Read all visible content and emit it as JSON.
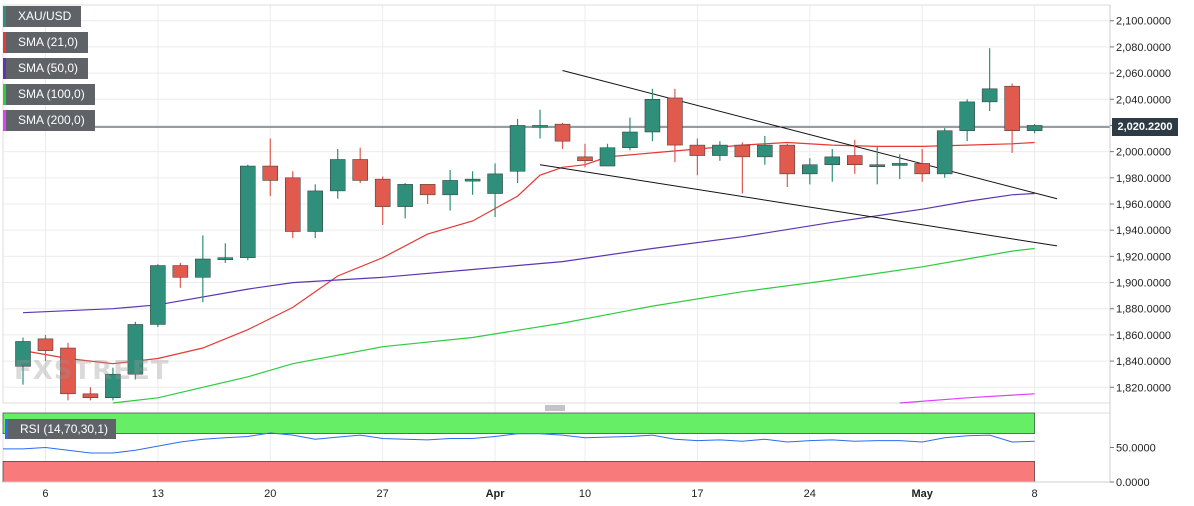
{
  "legends": [
    {
      "label": "XAU/USD",
      "color": "#2f8f7a"
    },
    {
      "label": "SMA (21,0)",
      "color": "#e53935"
    },
    {
      "label": "SMA (50,0)",
      "color": "#5e35b1"
    },
    {
      "label": "SMA (100,0)",
      "color": "#2ecc40"
    },
    {
      "label": "SMA (200,0)",
      "color": "#e040fb"
    }
  ],
  "rsi_legend": "RSI (14,70,30,1)",
  "watermark": "FXSTREET",
  "current_price_label": "2,020.2200",
  "colors": {
    "up": "#2f8f7a",
    "down": "#e05a4e",
    "rsi": "#2a6df4",
    "rsi_over": "#66ee66",
    "rsi_under": "#f87a7a"
  },
  "chart_data": {
    "type": "candlestick",
    "xlabel": "",
    "ylabel": "",
    "ylim": [
      1808,
      2112
    ],
    "y_ticks": [
      "1,820.0000",
      "1,840.0000",
      "1,860.0000",
      "1,880.0000",
      "1,900.0000",
      "1,920.0000",
      "1,940.0000",
      "1,960.0000",
      "1,980.0000",
      "2,000.0000",
      "2,020.0000",
      "2,040.0000",
      "2,060.0000",
      "2,080.0000",
      "2,100.0000"
    ],
    "y_tick_values": [
      1820,
      1840,
      1860,
      1880,
      1900,
      1920,
      1940,
      1960,
      1980,
      2000,
      2020,
      2040,
      2060,
      2080,
      2100
    ],
    "x_ticks": [
      {
        "label": "6",
        "i": 1
      },
      {
        "label": "13",
        "i": 6
      },
      {
        "label": "20",
        "i": 11
      },
      {
        "label": "27",
        "i": 16
      },
      {
        "label": "Apr",
        "i": 21
      },
      {
        "label": "10",
        "i": 25
      },
      {
        "label": "17",
        "i": 30
      },
      {
        "label": "24",
        "i": 35
      },
      {
        "label": "May",
        "i": 40
      },
      {
        "label": "8",
        "i": 45
      }
    ],
    "candles": [
      {
        "o": 1836,
        "h": 1858,
        "l": 1822,
        "c": 1855
      },
      {
        "o": 1857,
        "h": 1860,
        "l": 1840,
        "c": 1848
      },
      {
        "o": 1850,
        "h": 1854,
        "l": 1810,
        "c": 1815
      },
      {
        "o": 1815,
        "h": 1820,
        "l": 1810,
        "c": 1812
      },
      {
        "o": 1812,
        "h": 1835,
        "l": 1810,
        "c": 1830
      },
      {
        "o": 1830,
        "h": 1870,
        "l": 1826,
        "c": 1868
      },
      {
        "o": 1868,
        "h": 1914,
        "l": 1866,
        "c": 1913
      },
      {
        "o": 1913,
        "h": 1915,
        "l": 1896,
        "c": 1904
      },
      {
        "o": 1904,
        "h": 1936,
        "l": 1885,
        "c": 1918
      },
      {
        "o": 1918,
        "h": 1930,
        "l": 1915,
        "c": 1919
      },
      {
        "o": 1919,
        "h": 1990,
        "l": 1917,
        "c": 1989
      },
      {
        "o": 1989,
        "h": 2010,
        "l": 1966,
        "c": 1978
      },
      {
        "o": 1980,
        "h": 1985,
        "l": 1934,
        "c": 1939
      },
      {
        "o": 1939,
        "h": 1975,
        "l": 1934,
        "c": 1970
      },
      {
        "o": 1970,
        "h": 2002,
        "l": 1964,
        "c": 1994
      },
      {
        "o": 1994,
        "h": 2003,
        "l": 1976,
        "c": 1978
      },
      {
        "o": 1979,
        "h": 1981,
        "l": 1944,
        "c": 1958
      },
      {
        "o": 1958,
        "h": 1976,
        "l": 1949,
        "c": 1975
      },
      {
        "o": 1975,
        "h": 1974,
        "l": 1960,
        "c": 1967
      },
      {
        "o": 1967,
        "h": 1986,
        "l": 1955,
        "c": 1978
      },
      {
        "o": 1978,
        "h": 1985,
        "l": 1967,
        "c": 1979
      },
      {
        "o": 1968,
        "h": 1991,
        "l": 1950,
        "c": 1983
      },
      {
        "o": 1985,
        "h": 2025,
        "l": 1976,
        "c": 2020
      },
      {
        "o": 2020,
        "h": 2032,
        "l": 2010,
        "c": 2020
      },
      {
        "o": 2021,
        "h": 2022,
        "l": 2002,
        "c": 2008
      },
      {
        "o": 1996,
        "h": 2006,
        "l": 1988,
        "c": 1993
      },
      {
        "o": 1989,
        "h": 2006,
        "l": 1990,
        "c": 2003
      },
      {
        "o": 2003,
        "h": 2026,
        "l": 2001,
        "c": 2015
      },
      {
        "o": 2015,
        "h": 2048,
        "l": 2008,
        "c": 2040
      },
      {
        "o": 2041,
        "h": 2048,
        "l": 1992,
        "c": 2005
      },
      {
        "o": 2005,
        "h": 2010,
        "l": 1982,
        "c": 1997
      },
      {
        "o": 1997,
        "h": 2008,
        "l": 1993,
        "c": 2005
      },
      {
        "o": 2005,
        "h": 2007,
        "l": 1968,
        "c": 1996
      },
      {
        "o": 1996,
        "h": 2012,
        "l": 1990,
        "c": 2005
      },
      {
        "o": 2005,
        "h": 2006,
        "l": 1973,
        "c": 1983
      },
      {
        "o": 1983,
        "h": 1995,
        "l": 1975,
        "c": 1990
      },
      {
        "o": 1990,
        "h": 2002,
        "l": 1977,
        "c": 1996
      },
      {
        "o": 1997,
        "h": 2009,
        "l": 1983,
        "c": 1990
      },
      {
        "o": 1990,
        "h": 2004,
        "l": 1975,
        "c": 1990
      },
      {
        "o": 1990,
        "h": 1998,
        "l": 1979,
        "c": 1991
      },
      {
        "o": 1991,
        "h": 2002,
        "l": 1977,
        "c": 1983
      },
      {
        "o": 1983,
        "h": 2018,
        "l": 1980,
        "c": 2016
      },
      {
        "o": 2016,
        "h": 2040,
        "l": 2008,
        "c": 2038
      },
      {
        "o": 2038,
        "h": 2079,
        "l": 2031,
        "c": 2048
      },
      {
        "o": 2050,
        "h": 2052,
        "l": 1999,
        "c": 2016
      },
      {
        "o": 2016,
        "h": 2021,
        "l": 2014,
        "c": 2020
      }
    ],
    "series": [
      {
        "name": "SMA (21,0)",
        "values": [
          [
            0,
            1848
          ],
          [
            2,
            1842
          ],
          [
            4,
            1838
          ],
          [
            6,
            1842
          ],
          [
            8,
            1850
          ],
          [
            10,
            1864
          ],
          [
            12,
            1881
          ],
          [
            14,
            1905
          ],
          [
            16,
            1919
          ],
          [
            18,
            1937
          ],
          [
            20,
            1947
          ],
          [
            22,
            1966
          ],
          [
            23,
            1982
          ],
          [
            24,
            1988
          ],
          [
            25,
            1990
          ],
          [
            26,
            1996
          ],
          [
            28,
            1999
          ],
          [
            30,
            2002
          ],
          [
            32,
            2005
          ],
          [
            34,
            2007
          ],
          [
            36,
            2005
          ],
          [
            38,
            2004
          ],
          [
            40,
            2004
          ],
          [
            42,
            2005
          ],
          [
            44,
            2006
          ],
          [
            45,
            2007
          ]
        ]
      },
      {
        "name": "SMA (50,0)",
        "values": [
          [
            0,
            1877
          ],
          [
            4,
            1880
          ],
          [
            6,
            1883
          ],
          [
            10,
            1895
          ],
          [
            12,
            1900
          ],
          [
            16,
            1904
          ],
          [
            20,
            1910
          ],
          [
            24,
            1916
          ],
          [
            28,
            1926
          ],
          [
            32,
            1935
          ],
          [
            36,
            1946
          ],
          [
            40,
            1956
          ],
          [
            42,
            1962
          ],
          [
            44,
            1967
          ],
          [
            45,
            1968
          ]
        ]
      },
      {
        "name": "SMA (100,0)",
        "values": [
          [
            4,
            1808
          ],
          [
            6,
            1812
          ],
          [
            10,
            1828
          ],
          [
            12,
            1838
          ],
          [
            16,
            1851
          ],
          [
            20,
            1858
          ],
          [
            24,
            1869
          ],
          [
            28,
            1882
          ],
          [
            32,
            1893
          ],
          [
            36,
            1902
          ],
          [
            40,
            1912
          ],
          [
            42,
            1918
          ],
          [
            44,
            1924
          ],
          [
            45,
            1926
          ]
        ]
      },
      {
        "name": "SMA (200,0)",
        "values": [
          [
            39,
            1808
          ],
          [
            42,
            1812
          ],
          [
            44,
            1814
          ],
          [
            45,
            1815
          ]
        ]
      }
    ],
    "trendlines": [
      {
        "x1": 24.0,
        "y1": 2062,
        "x2": 46.0,
        "y2": 1964
      },
      {
        "x1": 23.0,
        "y1": 1990,
        "x2": 46.0,
        "y2": 1928
      }
    ],
    "rsi": {
      "ylim": [
        0,
        100
      ],
      "y_ticks": [
        "50.0000",
        "0.0000"
      ],
      "y_tick_values": [
        50,
        0
      ],
      "overbought": 70,
      "oversold": 30,
      "values": [
        48,
        50,
        46,
        42,
        42,
        46,
        52,
        58,
        62,
        64,
        66,
        71,
        68,
        62,
        65,
        68,
        63,
        62,
        61,
        63,
        63,
        66,
        70,
        70,
        68,
        64,
        65,
        66,
        68,
        62,
        60,
        61,
        59,
        62,
        58,
        60,
        61,
        59,
        60,
        60,
        58,
        64,
        67,
        68,
        58,
        59
      ]
    }
  }
}
